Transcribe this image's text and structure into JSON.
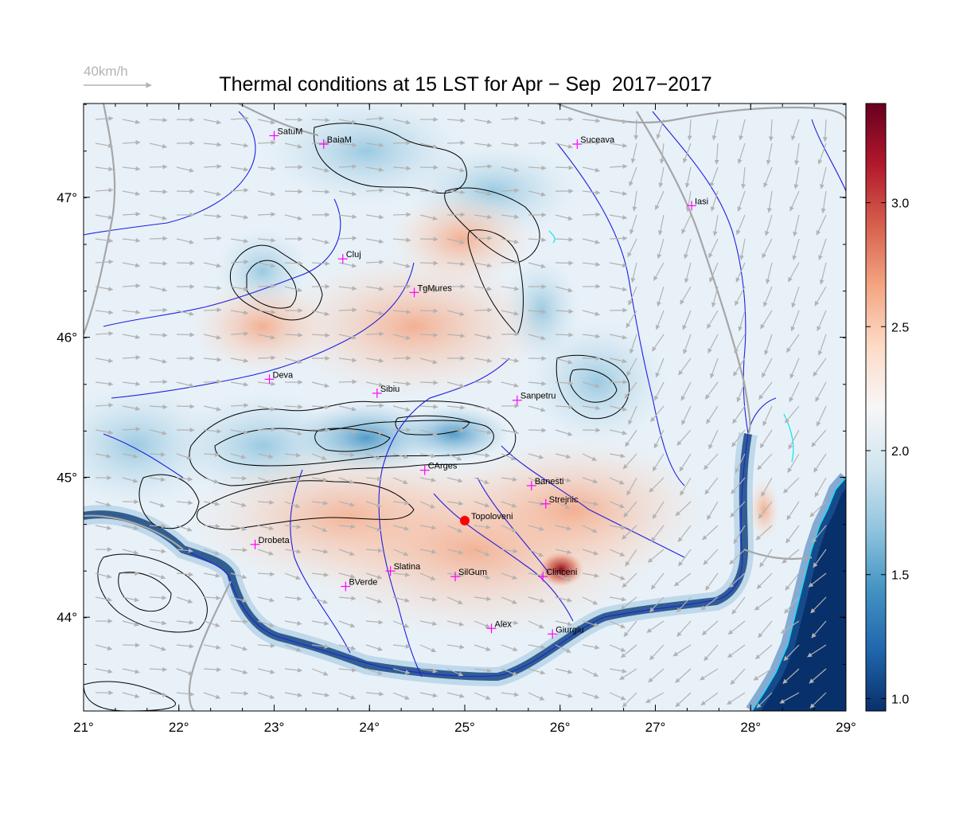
{
  "title": "Thermal conditions at 15 LST for Apr − Sep  2017−2017",
  "wind_reference": {
    "label": "40km/h",
    "color": "#b3b3b3"
  },
  "map": {
    "lon_range": [
      21,
      29
    ],
    "lat_range": [
      43.33,
      47.67
    ],
    "lon_ticks": [
      {
        "value": 21,
        "label": "21°"
      },
      {
        "value": 22,
        "label": "22°"
      },
      {
        "value": 23,
        "label": "23°"
      },
      {
        "value": 24,
        "label": "24°"
      },
      {
        "value": 25,
        "label": "25°"
      },
      {
        "value": 26,
        "label": "26°"
      },
      {
        "value": 27,
        "label": "27°"
      },
      {
        "value": 28,
        "label": "28°"
      },
      {
        "value": 29,
        "label": "29°"
      }
    ],
    "lat_ticks": [
      {
        "value": 44,
        "label": "44°"
      },
      {
        "value": 45,
        "label": "45°"
      },
      {
        "value": 46,
        "label": "46°"
      },
      {
        "value": 47,
        "label": "47°"
      }
    ],
    "cities": [
      {
        "name": "SatuM",
        "lon": 23.0,
        "lat": 47.44
      },
      {
        "name": "BaiaM",
        "lon": 23.52,
        "lat": 47.38
      },
      {
        "name": "Suceava",
        "lon": 26.18,
        "lat": 47.38
      },
      {
        "name": "Iasi",
        "lon": 27.38,
        "lat": 46.94
      },
      {
        "name": "Cluj",
        "lon": 23.72,
        "lat": 46.56
      },
      {
        "name": "TgMures",
        "lon": 24.47,
        "lat": 46.32
      },
      {
        "name": "Deva",
        "lon": 22.95,
        "lat": 45.7
      },
      {
        "name": "Sibiu",
        "lon": 24.08,
        "lat": 45.6
      },
      {
        "name": "Sanpetru",
        "lon": 25.55,
        "lat": 45.55
      },
      {
        "name": "CArges",
        "lon": 24.58,
        "lat": 45.05
      },
      {
        "name": "Banesti",
        "lon": 25.7,
        "lat": 44.94
      },
      {
        "name": "Strejnic",
        "lon": 25.85,
        "lat": 44.81
      },
      {
        "name": "Drobeta",
        "lon": 22.8,
        "lat": 44.52
      },
      {
        "name": "Slatina",
        "lon": 24.22,
        "lat": 44.33
      },
      {
        "name": "SilGum",
        "lon": 24.9,
        "lat": 44.29
      },
      {
        "name": "Clinceni",
        "lon": 25.82,
        "lat": 44.29
      },
      {
        "name": "BVerde",
        "lon": 23.75,
        "lat": 44.22
      },
      {
        "name": "Alex",
        "lon": 25.28,
        "lat": 43.92
      },
      {
        "name": "Giurgiu",
        "lon": 25.92,
        "lat": 43.88
      }
    ],
    "highlight_station": {
      "name": "Topoloveni",
      "lon": 25.0,
      "lat": 44.69,
      "color": "#ff0000"
    },
    "city_marker_color": "#ff00ff",
    "wind_vector_color": "#b3b3b3",
    "river_color": "#1f1fe0",
    "border_color": "#a6a6a6",
    "coast_color": "#00e5ff",
    "contour_color": "#000000"
  },
  "colorbar": {
    "range": [
      0.95,
      3.4
    ],
    "ticks": [
      {
        "value": 1.0,
        "label": "1.0"
      },
      {
        "value": 1.5,
        "label": "1.5"
      },
      {
        "value": 2.0,
        "label": "2.0"
      },
      {
        "value": 2.5,
        "label": "2.5"
      },
      {
        "value": 3.0,
        "label": "3.0"
      }
    ],
    "colors": [
      "#08306b",
      "#2166ac",
      "#4393c3",
      "#92c5de",
      "#d1e5f0",
      "#f7f7f7",
      "#fddbc7",
      "#f4a582",
      "#d6604d",
      "#b2182b",
      "#67001f"
    ]
  }
}
